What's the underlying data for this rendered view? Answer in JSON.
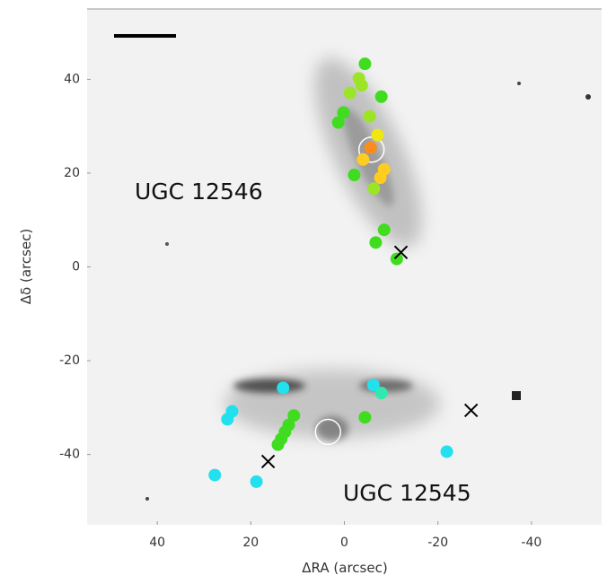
{
  "chart_data": {
    "type": "scatter",
    "xlabel": "ΔRA (arcsec)",
    "ylabel": "Δδ (arcsec)",
    "xlim": [
      55,
      -55
    ],
    "ylim": [
      -55,
      55
    ],
    "xticks": [
      40,
      20,
      0,
      -20,
      -40
    ],
    "yticks": [
      40,
      20,
      0,
      -20,
      -40
    ],
    "annotations": [
      "UGC 12546",
      "UGC 12545"
    ],
    "series": [
      {
        "color": "#3fdc1f",
        "x": [
          -4.4,
          -7.9,
          0.2,
          1.3,
          -2.1,
          -8.5,
          -6.7,
          -11.2,
          -4.4,
          10.8,
          11.9,
          12.7,
          13.5,
          14.2
        ],
        "y": [
          43.3,
          36.3,
          32.9,
          30.8,
          19.6,
          7.9,
          5.2,
          1.7,
          -32.1,
          -31.7,
          -33.7,
          -35.2,
          -36.7,
          -37.9
        ]
      },
      {
        "color": "#9be526",
        "x": [
          -3.1,
          -3.7,
          -1.2,
          -5.4,
          -6.3
        ],
        "y": [
          40.2,
          38.7,
          37.1,
          32.1,
          16.7
        ]
      },
      {
        "color": "#f0e612",
        "x": [
          -7.1
        ],
        "y": [
          28.1
        ]
      },
      {
        "color": "#ffcc22",
        "x": [
          -4.0,
          -8.5,
          -7.7
        ],
        "y": [
          22.9,
          20.8,
          19.0
        ]
      },
      {
        "color": "#ff8c1a",
        "x": [
          -5.6
        ],
        "y": [
          25.4
        ]
      },
      {
        "color": "#22e0ee",
        "x": [
          13.1,
          -6.2,
          24.0,
          25.0,
          27.7,
          18.8,
          -21.9
        ],
        "y": [
          -25.8,
          -25.2,
          -30.8,
          -32.5,
          -44.4,
          -45.8,
          -39.4
        ]
      },
      {
        "color": "#33e8b0",
        "x": [
          -7.9
        ],
        "y": [
          -26.9
        ]
      }
    ],
    "crosses": {
      "x": [
        -12.1,
        -27.1,
        16.3
      ],
      "y": [
        3.1,
        -30.6,
        -41.5
      ]
    },
    "circles": {
      "x": [
        -5.8,
        3.5
      ],
      "y": [
        25.0,
        -35.2
      ]
    }
  }
}
